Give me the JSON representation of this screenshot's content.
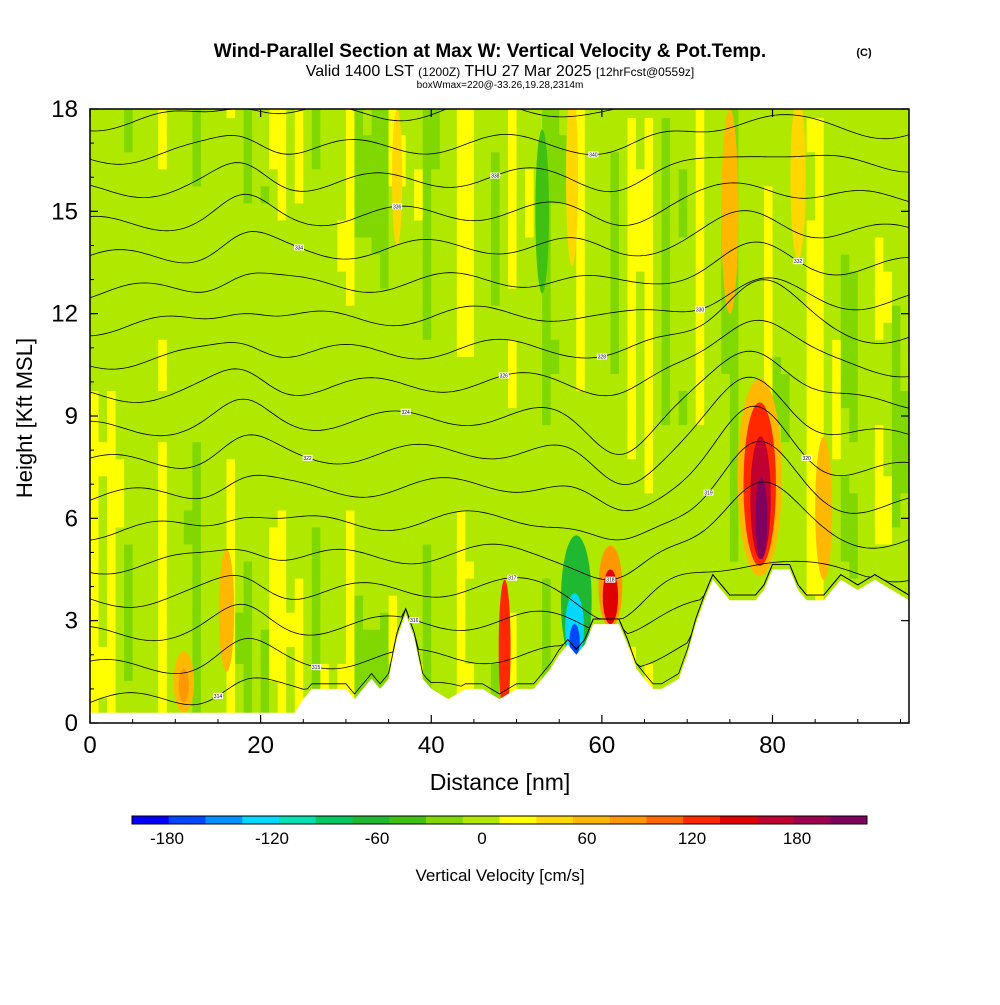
{
  "header": {
    "title": "Wind-Parallel Section at Max W: Vertical Velocity & Pot.Temp.",
    "copyright": "(C)",
    "valid_prefix": "Valid 1400 LST",
    "valid_utc": "(1200Z)",
    "valid_date": "THU 27 Mar 2025",
    "forecast": "[12hrFcst@0559z]",
    "box_info": "boxWmax=220@-33.26,19.28,2314m"
  },
  "chart_data": {
    "type": "heatmap",
    "title": "Wind-Parallel Section at Max W: Vertical Velocity & Pot.Temp.",
    "xlabel": "Distance [nm]",
    "ylabel": "Height [Kft MSL]",
    "xlim": [
      0,
      96
    ],
    "ylim": [
      0,
      18
    ],
    "x_ticks": [
      "0",
      "20",
      "40",
      "60",
      "80"
    ],
    "x_tick_values": [
      0,
      20,
      40,
      60,
      80
    ],
    "y_ticks": [
      "0",
      "3",
      "6",
      "9",
      "12",
      "15",
      "18"
    ],
    "y_tick_values": [
      0,
      3,
      6,
      9,
      12,
      15,
      18
    ],
    "colorbar": {
      "label": "Vertical Velocity [cm/s]",
      "ticks": [
        "-180",
        "-120",
        "-60",
        "0",
        "60",
        "120",
        "180"
      ],
      "tick_values": [
        -180,
        -120,
        -60,
        0,
        60,
        120,
        180
      ],
      "min": -200,
      "max": 220,
      "colors": [
        "#0000ff",
        "#0048ff",
        "#0090ff",
        "#00d8ff",
        "#00e0b0",
        "#00c860",
        "#20b830",
        "#40c010",
        "#80d800",
        "#b0e800",
        "#ffff00",
        "#ffd800",
        "#ffb800",
        "#ff9800",
        "#ff6800",
        "#ff2800",
        "#e00000",
        "#c00030",
        "#a00050",
        "#800060"
      ]
    },
    "terrain_kft": [
      [
        0,
        0.3
      ],
      [
        5,
        0.3
      ],
      [
        10,
        0.3
      ],
      [
        15,
        0.3
      ],
      [
        20,
        0.3
      ],
      [
        24,
        0.3
      ],
      [
        25,
        0.7
      ],
      [
        26,
        1.0
      ],
      [
        30,
        1.0
      ],
      [
        31,
        0.7
      ],
      [
        32,
        1.0
      ],
      [
        33,
        1.3
      ],
      [
        34,
        1.0
      ],
      [
        35,
        1.3
      ],
      [
        36,
        2.5
      ],
      [
        37,
        3.2
      ],
      [
        38,
        2.5
      ],
      [
        39,
        1.3
      ],
      [
        40,
        1.0
      ],
      [
        42,
        0.7
      ],
      [
        44,
        1.0
      ],
      [
        46,
        1.0
      ],
      [
        48,
        0.7
      ],
      [
        50,
        1.0
      ],
      [
        52,
        1.0
      ],
      [
        53,
        1.3
      ],
      [
        54,
        1.6
      ],
      [
        55,
        2.0
      ],
      [
        56,
        2.3
      ],
      [
        57,
        2.0
      ],
      [
        58,
        2.3
      ],
      [
        59,
        2.9
      ],
      [
        60,
        2.9
      ],
      [
        62,
        2.9
      ],
      [
        63,
        2.3
      ],
      [
        64,
        1.6
      ],
      [
        65,
        1.3
      ],
      [
        66,
        1.0
      ],
      [
        67,
        1.0
      ],
      [
        69,
        1.3
      ],
      [
        70,
        2.0
      ],
      [
        71,
        2.9
      ],
      [
        72,
        3.6
      ],
      [
        73,
        4.2
      ],
      [
        74,
        3.9
      ],
      [
        75,
        3.6
      ],
      [
        78,
        3.6
      ],
      [
        79,
        3.9
      ],
      [
        80,
        4.5
      ],
      [
        82,
        4.5
      ],
      [
        83,
        3.9
      ],
      [
        84,
        3.6
      ],
      [
        86,
        3.6
      ],
      [
        87,
        3.9
      ],
      [
        88,
        4.2
      ],
      [
        90,
        3.9
      ],
      [
        92,
        4.2
      ],
      [
        94,
        3.9
      ],
      [
        96,
        3.6
      ]
    ],
    "theta_contour_labels": [
      "314",
      "315",
      "316",
      "317",
      "318",
      "319",
      "320",
      "322",
      "324",
      "326",
      "328",
      "330",
      "332",
      "334",
      "336",
      "338",
      "340",
      "342"
    ]
  }
}
